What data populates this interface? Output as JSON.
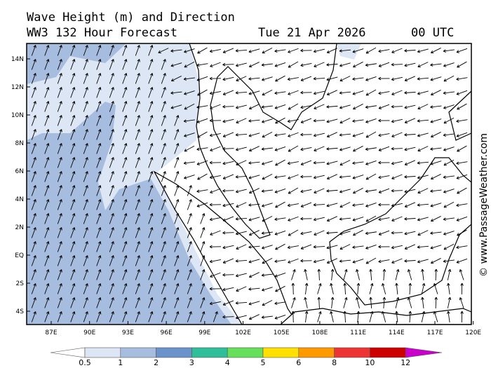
{
  "header": {
    "title": "Wave Height (m) and Direction",
    "subtitle": "WW3 132 Hour Forecast",
    "date": "Tue 21 Apr 2026",
    "time": "00 UTC"
  },
  "map": {
    "lat_labels": [
      "14N",
      "12N",
      "10N",
      "8N",
      "6N",
      "4N",
      "2N",
      "EQ",
      "2S",
      "4S"
    ],
    "lon_labels": [
      "87E",
      "90E",
      "93E",
      "96E",
      "99E",
      "102E",
      "105E",
      "108E",
      "111E",
      "114E",
      "117E",
      "120E"
    ]
  },
  "colorbar": {
    "labels": [
      "0.5",
      "1",
      "2",
      "3",
      "4",
      "5",
      "6",
      "8",
      "10",
      "12"
    ],
    "colors": [
      "#ffffff",
      "#dde6f4",
      "#a7bde0",
      "#6a93cc",
      "#2ebf9a",
      "#66e05a",
      "#ffe000",
      "#ff9900",
      "#ee3333",
      "#cc0000",
      "#cc00cc"
    ]
  },
  "watermark": "© www.PassageWeather.com"
}
